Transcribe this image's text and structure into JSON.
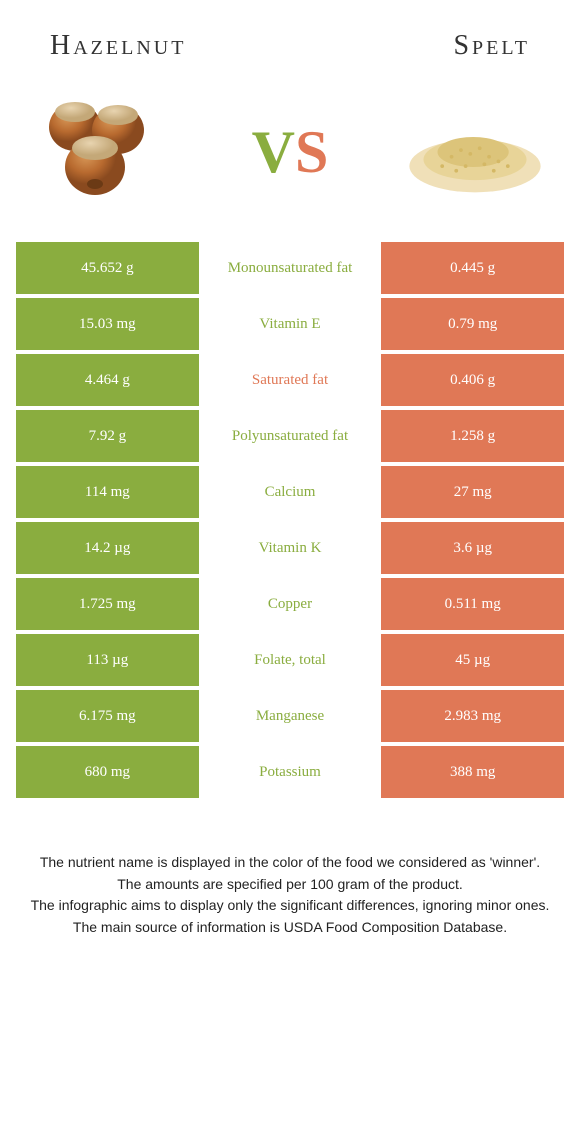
{
  "header": {
    "left": "Hazelnut",
    "right": "Spelt"
  },
  "vs": {
    "v": "V",
    "s": "S"
  },
  "colors": {
    "left_col": "#8aad3f",
    "right_col": "#e07856",
    "winner_left": "#8aad3f",
    "winner_right": "#e07856"
  },
  "rows": [
    {
      "left": "45.652 g",
      "label": "Monounsaturated fat",
      "right": "0.445 g",
      "winner": "left"
    },
    {
      "left": "15.03 mg",
      "label": "Vitamin E",
      "right": "0.79 mg",
      "winner": "left"
    },
    {
      "left": "4.464 g",
      "label": "Saturated fat",
      "right": "0.406 g",
      "winner": "right"
    },
    {
      "left": "7.92 g",
      "label": "Polyunsaturated fat",
      "right": "1.258 g",
      "winner": "left"
    },
    {
      "left": "114 mg",
      "label": "Calcium",
      "right": "27 mg",
      "winner": "left"
    },
    {
      "left": "14.2 µg",
      "label": "Vitamin K",
      "right": "3.6 µg",
      "winner": "left"
    },
    {
      "left": "1.725 mg",
      "label": "Copper",
      "right": "0.511 mg",
      "winner": "left"
    },
    {
      "left": "113 µg",
      "label": "Folate, total",
      "right": "45 µg",
      "winner": "left"
    },
    {
      "left": "6.175 mg",
      "label": "Manganese",
      "right": "2.983 mg",
      "winner": "left"
    },
    {
      "left": "680 mg",
      "label": "Potassium",
      "right": "388 mg",
      "winner": "left"
    }
  ],
  "footnotes": [
    "The nutrient name is displayed in the color of the food we considered as 'winner'.",
    "The amounts are specified per 100 gram of the product.",
    "The infographic aims to display only the significant differences, ignoring minor ones.",
    "The main source of information is USDA Food Composition Database."
  ]
}
